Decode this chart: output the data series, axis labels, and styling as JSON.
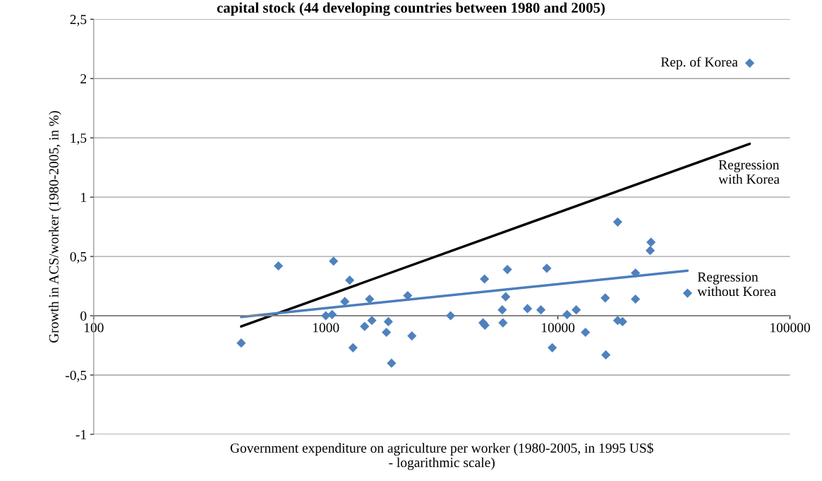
{
  "chart_data": {
    "type": "scatter",
    "title": "capital stock (44 developing countries between 1980 and 2005)",
    "xlabel": "Government expenditure on agriculture per worker (1980-2005, in 1995 US$\n- logarithmic scale)",
    "ylabel": "Growth in ACS/worker (1980-2005, in %)",
    "log": "x",
    "grid": "y",
    "marker": "diamond",
    "xlim": [
      100,
      100000
    ],
    "xticks": [
      100,
      1000,
      10000,
      100000
    ],
    "ylim": [
      -1,
      2.5
    ],
    "yticks": [
      {
        "value": -1,
        "label": "-1"
      },
      {
        "value": -0.5,
        "label": "-0,5"
      },
      {
        "value": 0,
        "label": "0"
      },
      {
        "value": 0.5,
        "label": "0,5"
      },
      {
        "value": 1,
        "label": "1"
      },
      {
        "value": 1.5,
        "label": "1,5"
      },
      {
        "value": 2,
        "label": "2"
      },
      {
        "value": 2.5,
        "label": "2,5"
      }
    ],
    "series": [
      {
        "color": "#4f81bd",
        "x": [
          432,
          625,
          1000,
          1065,
          1080,
          1268,
          1208,
          1310,
          1470,
          1545,
          1580,
          1825,
          1860,
          1920,
          2254,
          2350,
          3450,
          4760,
          4850,
          4830,
          5760,
          5800,
          5960,
          6060,
          7400,
          8450,
          8960,
          9460,
          10960,
          12000,
          13150,
          16000,
          16100,
          18100,
          18100,
          19000,
          21600,
          21600,
          25000,
          25200,
          36200,
          67100
        ],
        "values": [
          -0.23,
          0.42,
          0.0,
          0.01,
          0.46,
          0.3,
          0.12,
          -0.27,
          -0.09,
          0.14,
          -0.04,
          -0.14,
          -0.05,
          -0.4,
          0.17,
          -0.17,
          0.0,
          -0.06,
          -0.08,
          0.31,
          0.05,
          -0.06,
          0.16,
          0.39,
          0.06,
          0.05,
          0.4,
          -0.27,
          0.01,
          0.05,
          -0.14,
          0.15,
          -0.33,
          0.79,
          -0.04,
          -0.05,
          0.36,
          0.14,
          0.55,
          0.62,
          0.19,
          2.13
        ]
      },
      {
        "type": "line",
        "name": "Regression\nwith Korea",
        "color": "#000000",
        "marker": "none",
        "x": [
          432,
          67100
        ],
        "values": [
          -0.09,
          1.45
        ]
      },
      {
        "type": "line",
        "name": "Regression\nwithout Korea",
        "color": "#4a7ebb",
        "marker": "none",
        "x": [
          432,
          36200
        ],
        "values": [
          -0.01,
          0.38
        ]
      }
    ],
    "annotations": [
      {
        "text": "Rep. of Korea",
        "x": 67100,
        "y": 2.13
      }
    ]
  }
}
